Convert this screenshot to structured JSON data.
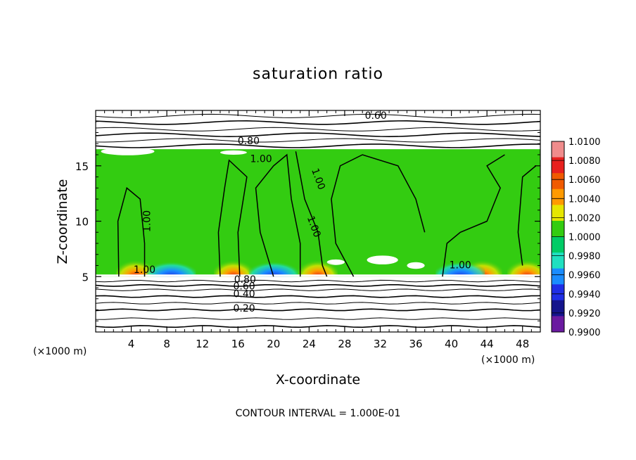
{
  "chart_data": {
    "type": "heatmap",
    "title": "saturation ratio",
    "xlabel": "X-coordinate",
    "ylabel": "Z-coordinate",
    "x_unit": "(×1000 m)",
    "z_unit": "(×1000 m)",
    "xlim": [
      0,
      50
    ],
    "ylim": [
      0,
      20
    ],
    "xticks": [
      4,
      8,
      12,
      16,
      20,
      24,
      28,
      32,
      36,
      40,
      44,
      48
    ],
    "yticks": [
      5,
      10,
      15
    ],
    "footer": "CONTOUR INTERVAL = 1.000E-01",
    "colorbar": {
      "range": [
        0.99,
        1.01
      ],
      "labels": [
        "1.0100",
        "1.0080",
        "1.0060",
        "1.0040",
        "1.0020",
        "1.0000",
        "0.9980",
        "0.9960",
        "0.9940",
        "0.9920",
        "0.9900"
      ],
      "colors": [
        "#f08c8c",
        "#e8201e",
        "#f05a00",
        "#ff9a00",
        "#e6e600",
        "#33cc11",
        "#00cc66",
        "#20e0c0",
        "#1a8cff",
        "#1f2ee6",
        "#14148c",
        "#6a1aa0"
      ]
    },
    "contour_labels": [
      "0.60",
      "0.80",
      "1.00",
      "1.00",
      "1.00",
      "1.00",
      "1.00",
      "1.00",
      "0.80",
      "0.60",
      "0.40",
      "0.20"
    ],
    "cloud_layer_z": [
      5,
      16.5
    ],
    "warm_spots": [
      {
        "x": 4.5,
        "value": 1.008
      },
      {
        "x": 15.5,
        "value": 1.008
      },
      {
        "x": 25,
        "value": 1.006
      },
      {
        "x": 43.5,
        "value": 1.008
      },
      {
        "x": 48.5,
        "value": 1.006
      }
    ],
    "cold_spots": [
      {
        "x": 8.5,
        "value": 0.992
      },
      {
        "x": 20,
        "value": 0.996
      },
      {
        "x": 41,
        "value": 0.994
      }
    ]
  }
}
